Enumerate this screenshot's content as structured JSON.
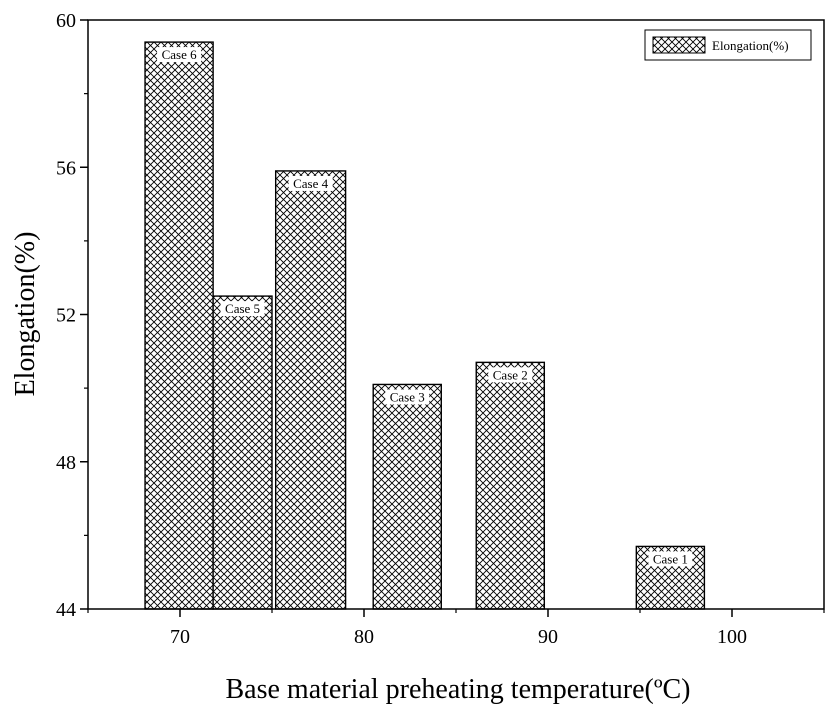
{
  "chart_data": {
    "type": "bar",
    "title": "",
    "xlabel": "Base material preheating temperature(ºC)",
    "ylabel": "Elongation(%)",
    "xlim": [
      65,
      105
    ],
    "ylim": [
      44,
      60
    ],
    "x_ticks": [
      70,
      80,
      90,
      100
    ],
    "y_ticks": [
      44,
      48,
      52,
      56,
      60
    ],
    "grid": false,
    "legend": {
      "position": "top-right",
      "entries": [
        "Elongation(%)"
      ]
    },
    "series": [
      {
        "name": "Elongation(%)",
        "pattern": "crosshatch",
        "bars": [
          {
            "label": "Case 6",
            "x_start": 68.1,
            "x_end": 71.8,
            "value": 59.4
          },
          {
            "label": "Case 5",
            "x_start": 71.8,
            "x_end": 75.0,
            "value": 52.5
          },
          {
            "label": "Case 4",
            "x_start": 75.2,
            "x_end": 79.0,
            "value": 55.9
          },
          {
            "label": "Case 3",
            "x_start": 80.5,
            "x_end": 84.2,
            "value": 50.1
          },
          {
            "label": "Case 2",
            "x_start": 86.1,
            "x_end": 89.8,
            "value": 50.7
          },
          {
            "label": "Case 1",
            "x_start": 94.8,
            "x_end": 98.5,
            "value": 45.7
          }
        ]
      }
    ]
  }
}
